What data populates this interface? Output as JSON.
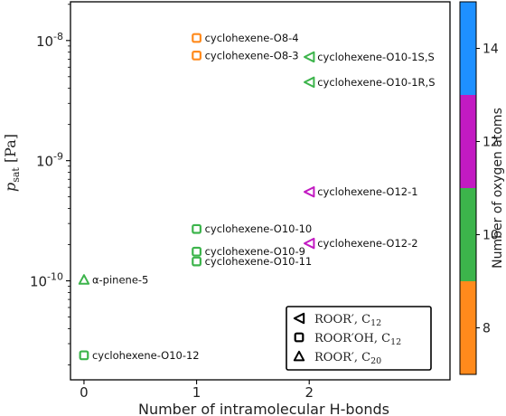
{
  "chart_data": {
    "type": "scatter",
    "xlabel": "Number of intramolecular H-bonds",
    "ylabel_main": "p",
    "ylabel_sub": "sat",
    "ylabel_unit": "[Pa]",
    "y_scale": "log",
    "xlim": [
      -0.12,
      3.25
    ],
    "ylim": [
      1.5e-11,
      2.1e-08
    ],
    "x_ticks": [
      0,
      1,
      2
    ],
    "x_tick_labels": [
      "0",
      "1",
      "2"
    ],
    "y_ticks": [
      1e-10,
      1e-09,
      1e-08
    ],
    "y_tick_labels": [
      {
        "base": "10",
        "exp": "-10"
      },
      {
        "base": "10",
        "exp": "-9"
      },
      {
        "base": "10",
        "exp": "-8"
      }
    ],
    "points": [
      {
        "label": "cyclohexene-O8-4",
        "x": 1,
        "y": 1.05e-08,
        "marker": "square",
        "oxygen": 8
      },
      {
        "label": "cyclohexene-O8-3",
        "x": 1,
        "y": 7.5e-09,
        "marker": "square",
        "oxygen": 8
      },
      {
        "label": "cyclohexene-O10-1S,S",
        "x": 2,
        "y": 7.3e-09,
        "marker": "triangle-left",
        "oxygen": 10
      },
      {
        "label": "cyclohexene-O10-1R,S",
        "x": 2,
        "y": 4.5e-09,
        "marker": "triangle-left",
        "oxygen": 10
      },
      {
        "label": "cyclohexene-O12-1",
        "x": 2,
        "y": 5.5e-10,
        "marker": "triangle-left",
        "oxygen": 12
      },
      {
        "label": "cyclohexene-O10-10",
        "x": 1,
        "y": 2.7e-10,
        "marker": "square",
        "oxygen": 10
      },
      {
        "label": "cyclohexene-O12-2",
        "x": 2,
        "y": 2.05e-10,
        "marker": "triangle-left",
        "oxygen": 12
      },
      {
        "label": "cyclohexene-O10-9",
        "x": 1,
        "y": 1.75e-10,
        "marker": "square",
        "oxygen": 10
      },
      {
        "label": "cyclohexene-O10-11",
        "x": 1,
        "y": 1.45e-10,
        "marker": "square",
        "oxygen": 10
      },
      {
        "label": "α-pinene-5",
        "x": 0,
        "y": 1.02e-10,
        "marker": "triangle-up",
        "oxygen": 10
      },
      {
        "label": "cyclohexene-O10-12",
        "x": 0,
        "y": 2.4e-11,
        "marker": "square",
        "oxygen": 10
      }
    ],
    "legend": {
      "placement": "bottom-right",
      "entries": [
        {
          "marker": "triangle-left",
          "text": "ROOR′, C",
          "sub": "12"
        },
        {
          "marker": "square",
          "text": "ROOR′OH, C",
          "sub": "12"
        },
        {
          "marker": "triangle-up",
          "text": "ROOR′, C",
          "sub": "20"
        }
      ]
    },
    "colorbar": {
      "label": "Number of oxygen atoms",
      "range": [
        7,
        15
      ],
      "bands": [
        {
          "from": 7,
          "to": 9,
          "color": "#ff8a1c",
          "oxygen": 8
        },
        {
          "from": 9,
          "to": 11,
          "color": "#3cb44b",
          "oxygen": 10
        },
        {
          "from": 11,
          "to": 13,
          "color": "#c21ac2",
          "oxygen": 12
        },
        {
          "from": 13,
          "to": 15,
          "color": "#1e90ff",
          "oxygen": 14
        }
      ],
      "ticks": [
        8,
        10,
        12,
        14
      ],
      "tick_labels": [
        "8",
        "10",
        "12",
        "14"
      ]
    }
  }
}
